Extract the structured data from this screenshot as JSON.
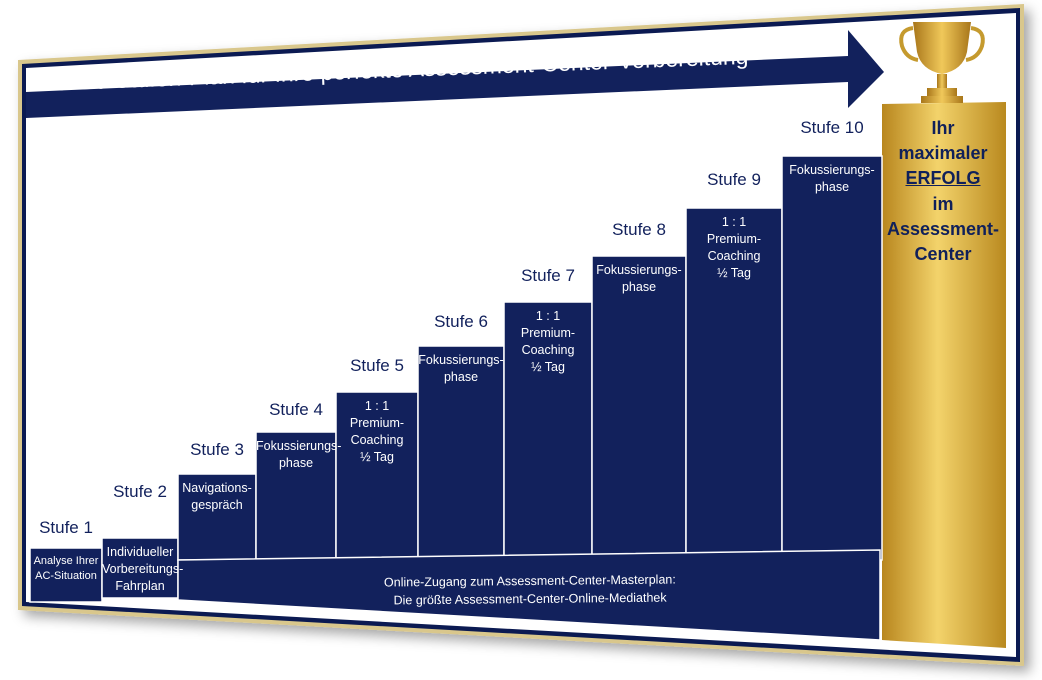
{
  "title": "Der 10-Stufen-Plan für Ihre perfekte Assessment-Center-Vorbereitung",
  "colors": {
    "navy": "#12215c",
    "gold": "#d4ad3a",
    "frame": "#0b1a52"
  },
  "steps": [
    {
      "name": "Stufe 1",
      "text": "Analyse Ihrer\nAC-Situation"
    },
    {
      "name": "Stufe 2",
      "text": "Individueller\nVorbereitungs-\nFahrplan"
    },
    {
      "name": "Stufe 3",
      "text": "Navigations-\ngespräch"
    },
    {
      "name": "Stufe 4",
      "text": "Fokussierungs-\nphase"
    },
    {
      "name": "Stufe 5",
      "text": "1 : 1\nPremium-\nCoaching\n½ Tag"
    },
    {
      "name": "Stufe 6",
      "text": "Fokussierungs-\nphase"
    },
    {
      "name": "Stufe 7",
      "text": "1 : 1\nPremium-\nCoaching\n½ Tag"
    },
    {
      "name": "Stufe 8",
      "text": "Fokussierungs-\nphase"
    },
    {
      "name": "Stufe 9",
      "text": "1 : 1\nPremium-\nCoaching\n½ Tag"
    },
    {
      "name": "Stufe 10",
      "text": "Fokussierungs-\nphase"
    }
  ],
  "base": {
    "line1": "Online-Zugang zum Assessment-Center-Masterplan:",
    "line2": "Die größte Assessment-Center-Online-Mediathek"
  },
  "goal": {
    "line1": "Ihr",
    "line2": "maximaler",
    "line3": "ERFOLG",
    "line4": "im",
    "line5": "Assessment-",
    "line6": "Center"
  },
  "trophy_icon": "trophy-icon"
}
